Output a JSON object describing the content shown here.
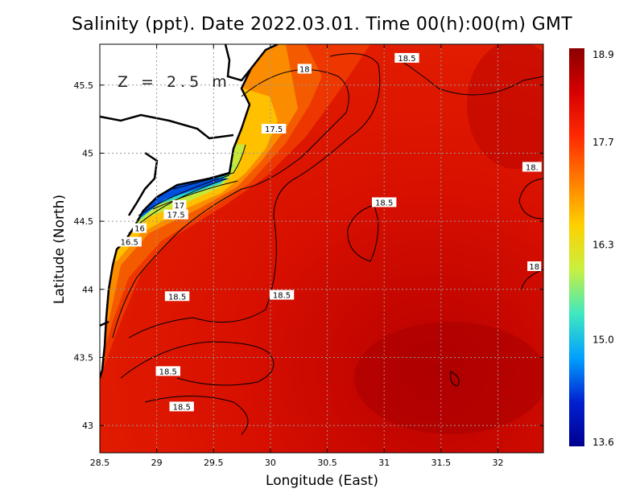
{
  "title": "Salinity (ppt). Date 2022.03.01. Time 00(h):00(m) GMT",
  "depth_label": "Z = 2.5 m",
  "axes": {
    "x_label": "Longitude (East)",
    "y_label": "Latitude (North)",
    "x_range": [
      28.5,
      32.4
    ],
    "y_range": [
      42.8,
      45.8
    ],
    "x_ticks": [
      "28.5",
      "29",
      "29.5",
      "30",
      "30.5",
      "31",
      "31.5",
      "32"
    ],
    "x_tick_values": [
      28.5,
      29,
      29.5,
      30,
      30.5,
      31,
      31.5,
      32
    ],
    "y_ticks": [
      "43",
      "43.5",
      "44",
      "44.5",
      "45",
      "45.5"
    ],
    "y_tick_values": [
      43,
      43.5,
      44,
      44.5,
      45,
      45.5
    ],
    "grid": true
  },
  "colorbar": {
    "min": 13.6,
    "max": 18.9,
    "labels": [
      "18.9",
      "17.7",
      "16.3",
      "15.0",
      "13.6"
    ],
    "label_values": [
      18.9,
      17.7,
      16.3,
      15.0,
      13.6
    ],
    "colors": [
      "#8b0000",
      "#d80000",
      "#ff2a00",
      "#ff7d00",
      "#ffd000",
      "#c8f040",
      "#40e8c0",
      "#00a0ff",
      "#0020d0",
      "#000090"
    ]
  },
  "contour_labels": [
    {
      "text": "18",
      "lon": 30.3,
      "lat": 45.62
    },
    {
      "text": "18.5",
      "lon": 31.2,
      "lat": 45.7
    },
    {
      "text": "17.5",
      "lon": 30.03,
      "lat": 45.18
    },
    {
      "text": "17",
      "lon": 29.2,
      "lat": 44.62
    },
    {
      "text": "17.5",
      "lon": 29.17,
      "lat": 44.55
    },
    {
      "text": "16",
      "lon": 28.85,
      "lat": 44.45
    },
    {
      "text": "16.5",
      "lon": 28.76,
      "lat": 44.35
    },
    {
      "text": "18.5",
      "lon": 31.0,
      "lat": 44.64
    },
    {
      "text": "18.",
      "lon": 32.3,
      "lat": 44.9
    },
    {
      "text": "18",
      "lon": 32.32,
      "lat": 44.17
    },
    {
      "text": "18.5",
      "lon": 29.18,
      "lat": 43.95
    },
    {
      "text": "18.5",
      "lon": 30.1,
      "lat": 43.96
    },
    {
      "text": "18.5",
      "lon": 29.1,
      "lat": 43.4
    },
    {
      "text": "18.5",
      "lon": 29.22,
      "lat": 43.14
    }
  ]
}
